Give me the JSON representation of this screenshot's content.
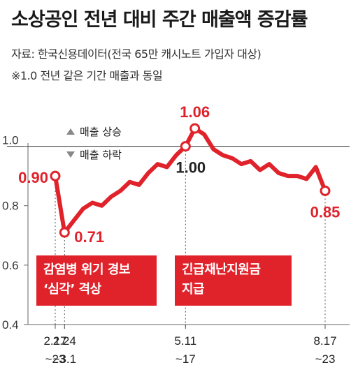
{
  "chart_data": {
    "type": "line",
    "title": "소상공인 전년 대비 주간 매출액 증감률",
    "source": "자료: 한국신용데이터(전국 65만 캐시노트 가입자 대상)",
    "note": "※1.0 전년 같은 기간 매출과 동일",
    "ylim": [
      0.4,
      1.1
    ],
    "yticks": [
      "1.0",
      "0.8",
      "0.6",
      "0.4"
    ],
    "reference_line": 1.0,
    "legend": {
      "up": "매출 상승",
      "down": "매출 하락"
    },
    "color": "#e0222b",
    "series": [
      {
        "values": [
          0.9,
          0.71,
          0.75,
          0.79,
          0.81,
          0.8,
          0.83,
          0.85,
          0.88,
          0.87,
          0.91,
          0.94,
          0.93,
          0.97,
          1.0,
          1.06,
          1.04,
          0.99,
          0.97,
          0.96,
          0.94,
          0.95,
          0.92,
          0.94,
          0.91,
          0.9,
          0.9,
          0.89,
          0.93,
          0.85
        ]
      }
    ],
    "x_ticks": [
      {
        "index": 0,
        "line1": "2.17",
        "line2": "~23"
      },
      {
        "index": 1,
        "line1": "2.24",
        "line2": "~3.1"
      },
      {
        "index": 14,
        "line1": "5.11",
        "line2": "~17"
      },
      {
        "index": 29,
        "line1": "8.17",
        "line2": "~23"
      }
    ],
    "data_labels": [
      {
        "index": 0,
        "text": "0.90"
      },
      {
        "index": 1,
        "text": "0.71"
      },
      {
        "index": 14,
        "text": "1.00"
      },
      {
        "index": 15,
        "text": "1.06"
      },
      {
        "index": 29,
        "text": "0.85"
      }
    ],
    "annotations": [
      {
        "lines": [
          "감염병 위기 경보",
          "‘심각’ 격상"
        ],
        "index": 1
      },
      {
        "lines": [
          "긴급재난지원금",
          "지급"
        ],
        "index": 14
      }
    ]
  }
}
